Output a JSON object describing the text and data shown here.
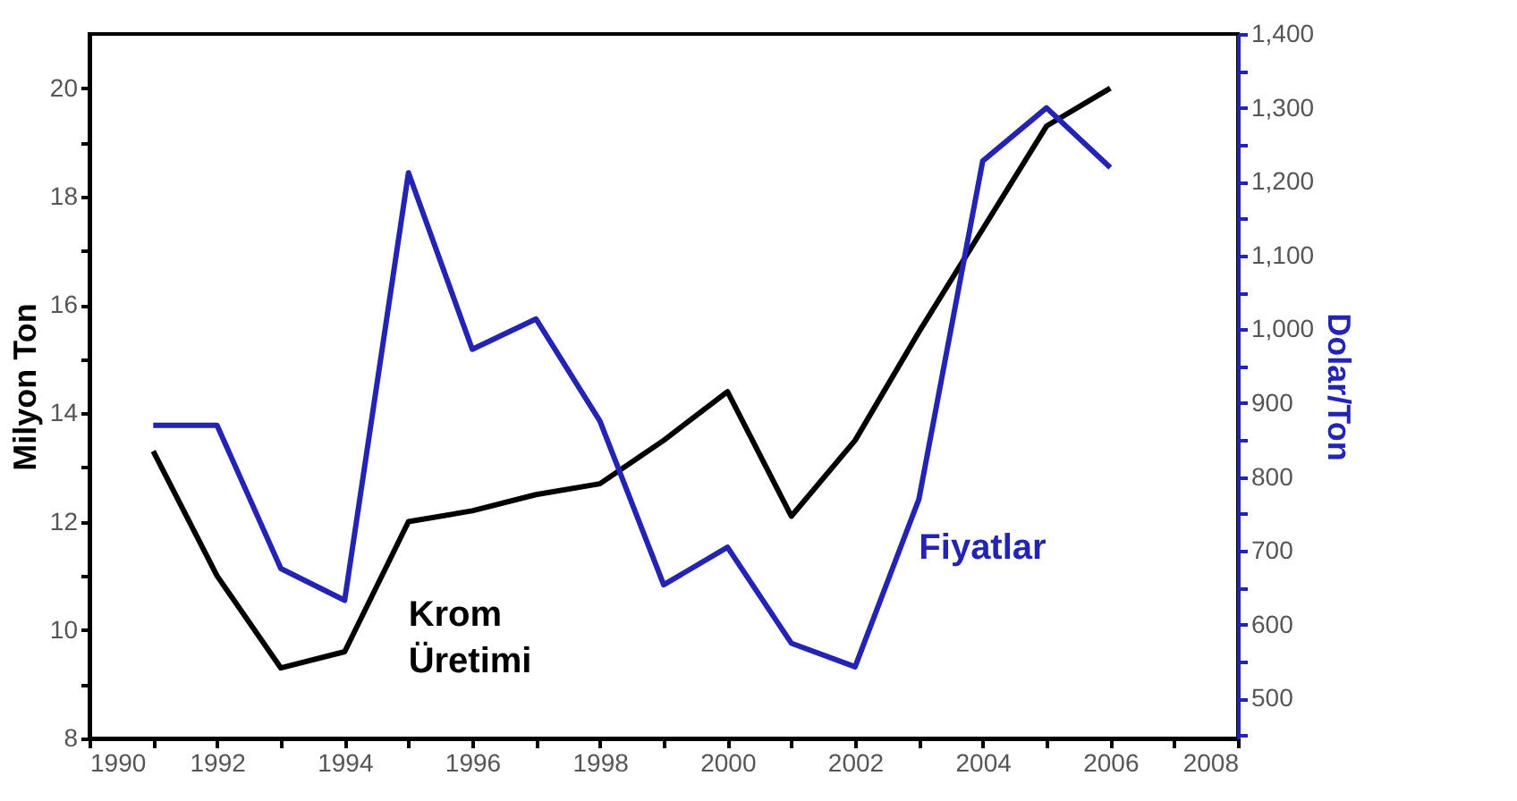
{
  "chart_data": {
    "type": "line",
    "ylabel": "Milyon Ton",
    "y2label": "Dolar/Ton",
    "x": [
      1991,
      1992,
      1993,
      1994,
      1995,
      1996,
      1997,
      1998,
      1999,
      2000,
      2001,
      2002,
      2003,
      2004,
      2005,
      2006
    ],
    "series": [
      {
        "name": "Krom Üretimi",
        "color": "#000000",
        "values": [
          13.3,
          11.0,
          9.3,
          9.6,
          12.0,
          12.2,
          12.5,
          12.7,
          13.5,
          14.4,
          12.1,
          13.5,
          15.5,
          17.4,
          19.3,
          20.0
        ]
      },
      {
        "name": "Fiyatlar",
        "color": "#2323b4",
        "axis": "y2",
        "values": [
          870,
          870,
          676,
          633,
          1212,
          973,
          1014,
          876,
          654,
          705,
          575,
          543,
          770,
          1228,
          1300,
          1219
        ]
      }
    ],
    "xlim": [
      1990,
      2008
    ],
    "xticks": [
      1990,
      {
        "value": 1991,
        "label": null
      },
      1992,
      {
        "value": 1993,
        "label": null
      },
      1994,
      {
        "value": 1995,
        "label": null
      },
      1996,
      {
        "value": 1997,
        "label": null
      },
      1998,
      {
        "value": 1999,
        "label": null
      },
      2000,
      {
        "value": 2001,
        "label": null
      },
      2002,
      {
        "value": 2003,
        "label": null
      },
      2004,
      {
        "value": 2005,
        "label": null
      },
      2006,
      {
        "value": 2007,
        "label": null
      },
      2008
    ],
    "ylim": [
      8,
      21
    ],
    "yticks": [
      8,
      {
        "value": 9,
        "label": null
      },
      10,
      {
        "value": 11,
        "label": null
      },
      12,
      {
        "value": 13,
        "label": null
      },
      14,
      {
        "value": 15,
        "label": null
      },
      16,
      {
        "value": 17,
        "label": null
      },
      18,
      {
        "value": 19,
        "label": null
      },
      20
    ],
    "y2lim": [
      446,
      1400
    ],
    "y2ticks": [
      {
        "value": 450,
        "label": null
      },
      500,
      {
        "value": 550,
        "label": null
      },
      {
        "value": 600,
        "label": "600"
      },
      {
        "value": 650,
        "label": null
      },
      {
        "value": 700,
        "label": "700"
      },
      {
        "value": 750,
        "label": null
      },
      {
        "value": 800,
        "label": "800"
      },
      {
        "value": 850,
        "label": null
      },
      {
        "value": 900,
        "label": "900"
      },
      {
        "value": 950,
        "label": null
      },
      {
        "value": 1000,
        "label": "1,000"
      },
      {
        "value": 1050,
        "label": null
      },
      {
        "value": 1100,
        "label": "1,100"
      },
      {
        "value": 1150,
        "label": null
      },
      {
        "value": 1200,
        "label": "1,200"
      },
      {
        "value": 1250,
        "label": null
      },
      {
        "value": 1300,
        "label": "1,300"
      },
      {
        "value": 1350,
        "label": null
      },
      {
        "value": 1400,
        "label": "1,400"
      }
    ],
    "grid": false,
    "marker": "none",
    "line_style": "solid"
  }
}
